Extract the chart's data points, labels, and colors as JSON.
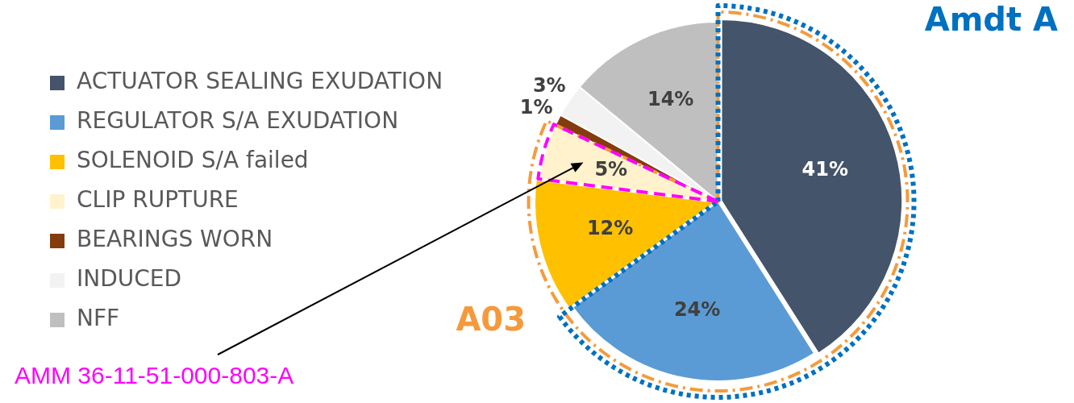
{
  "chart_data": {
    "type": "pie",
    "categories": [
      "ACTUATOR SEALING EXUDATION",
      "REGULATOR S/A EXUDATION",
      "SOLENOID S/A failed",
      "CLIP RUPTURE",
      "BEARINGS WORN",
      "INDUCED",
      "NFF"
    ],
    "values": [
      41,
      24,
      12,
      5,
      1,
      3,
      14
    ],
    "colors": [
      "#44546a",
      "#5b9bd5",
      "#ffc000",
      "#fff2cc",
      "#843c0c",
      "#f2f2f2",
      "#bfbfbf"
    ],
    "value_labels": [
      "41%",
      "24%",
      "12%",
      "5%",
      "1%",
      "3%",
      "14%"
    ],
    "legend": "left",
    "annotations": [
      "Amdt A",
      "A03",
      "AMM 36-11-51-000-803-A"
    ]
  }
}
